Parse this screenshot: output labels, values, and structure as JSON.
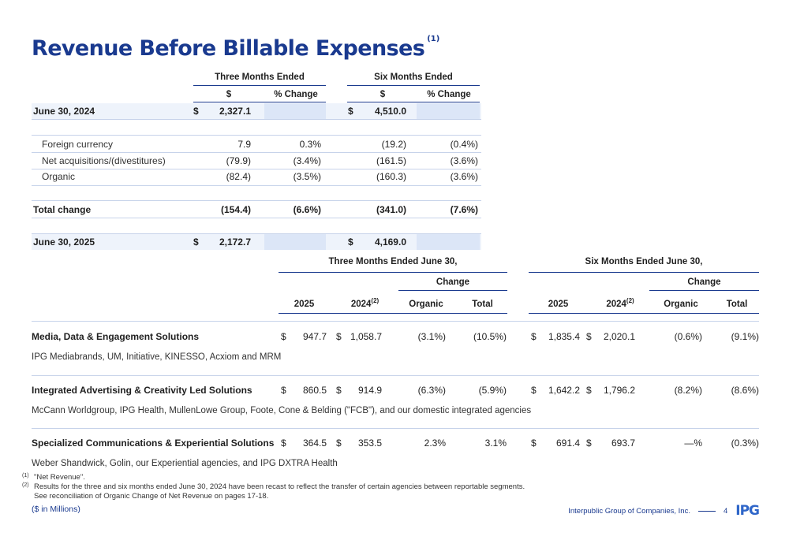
{
  "title": "Revenue Before Billable Expenses",
  "title_note": "(1)",
  "table1": {
    "group_headers": [
      "Three Months Ended",
      "Six Months Ended"
    ],
    "col_headers": [
      "$",
      "% Change",
      "$",
      "% Change"
    ],
    "rows": [
      {
        "label": "June 30, 2024",
        "q_cur": "$",
        "q_val": "2,327.1",
        "q_pct": "",
        "s_cur": "$",
        "s_val": "4,510.0",
        "s_pct": ""
      },
      {
        "label": "Foreign currency",
        "q_cur": "",
        "q_val": "7.9",
        "q_pct": "0.3%",
        "s_cur": "",
        "s_val": "(19.2)",
        "s_pct": "(0.4%)"
      },
      {
        "label": "Net acquisitions/(divestitures)",
        "q_cur": "",
        "q_val": "(79.9)",
        "q_pct": "(3.4%)",
        "s_cur": "",
        "s_val": "(161.5)",
        "s_pct": "(3.6%)"
      },
      {
        "label": "Organic",
        "q_cur": "",
        "q_val": "(82.4)",
        "q_pct": "(3.5%)",
        "s_cur": "",
        "s_val": "(160.3)",
        "s_pct": "(3.6%)"
      },
      {
        "label": "Total change",
        "q_cur": "",
        "q_val": "(154.4)",
        "q_pct": "(6.6%)",
        "s_cur": "",
        "s_val": "(341.0)",
        "s_pct": "(7.6%)"
      },
      {
        "label": "June 30, 2025",
        "q_cur": "$",
        "q_val": "2,172.7",
        "q_pct": "",
        "s_cur": "$",
        "s_val": "4,169.0",
        "s_pct": ""
      }
    ]
  },
  "table2": {
    "group_headers": [
      "Three Months Ended June 30,",
      "Six Months Ended June 30,"
    ],
    "change_label": "Change",
    "year_2025": "2025",
    "year_2024": "2024",
    "year_2024_note": "(2)",
    "organic_label": "Organic",
    "total_label": "Total",
    "segments": [
      {
        "name": "Media, Data & Engagement Solutions",
        "desc": "IPG Mediabrands, UM, Initiative, KINESSO, Acxiom and MRM",
        "q25": "947.7",
        "q24": "1,058.7",
        "q_org": "(3.1%)",
        "q_tot": "(10.5%)",
        "s25": "1,835.4",
        "s24": "2,020.1",
        "s_org": "(0.6%)",
        "s_tot": "(9.1%)"
      },
      {
        "name": "Integrated Advertising & Creativity Led Solutions",
        "desc": "McCann Worldgroup, IPG Health, MullenLowe Group, Foote, Cone & Belding (\"FCB\"), and our domestic integrated agencies",
        "q25": "860.5",
        "q24": "914.9",
        "q_org": "(6.3%)",
        "q_tot": "(5.9%)",
        "s25": "1,642.2",
        "s24": "1,796.2",
        "s_org": "(8.2%)",
        "s_tot": "(8.6%)"
      },
      {
        "name": "Specialized Communications & Experiential Solutions",
        "desc": "Weber Shandwick, Golin, our Experiential agencies, and IPG DXTRA Health",
        "q25": "364.5",
        "q24": "353.5",
        "q_org": "2.3%",
        "q_tot": "3.1%",
        "s25": "691.4",
        "s24": "693.7",
        "s_org": "—%",
        "s_tot": "(0.3%)"
      }
    ],
    "currency": "$"
  },
  "notes": [
    {
      "mark": "(1)",
      "text": "\"Net Revenue\"."
    },
    {
      "mark": "(2)",
      "text": "Results for the three and six months ended June 30, 2024 have been recast to reflect the transfer of certain agencies between reportable segments."
    },
    {
      "mark": "",
      "text": "See reconciliation of Organic Change of Net Revenue on pages 17-18."
    }
  ],
  "units": "($ in Millions)",
  "footer": {
    "company": "Interpublic Group of Companies, Inc.",
    "page": "4",
    "logo": "IPG"
  },
  "colors": {
    "accent": "#1a3a8f",
    "highlight": "#dce6f7",
    "logo": "#2f66c9"
  }
}
